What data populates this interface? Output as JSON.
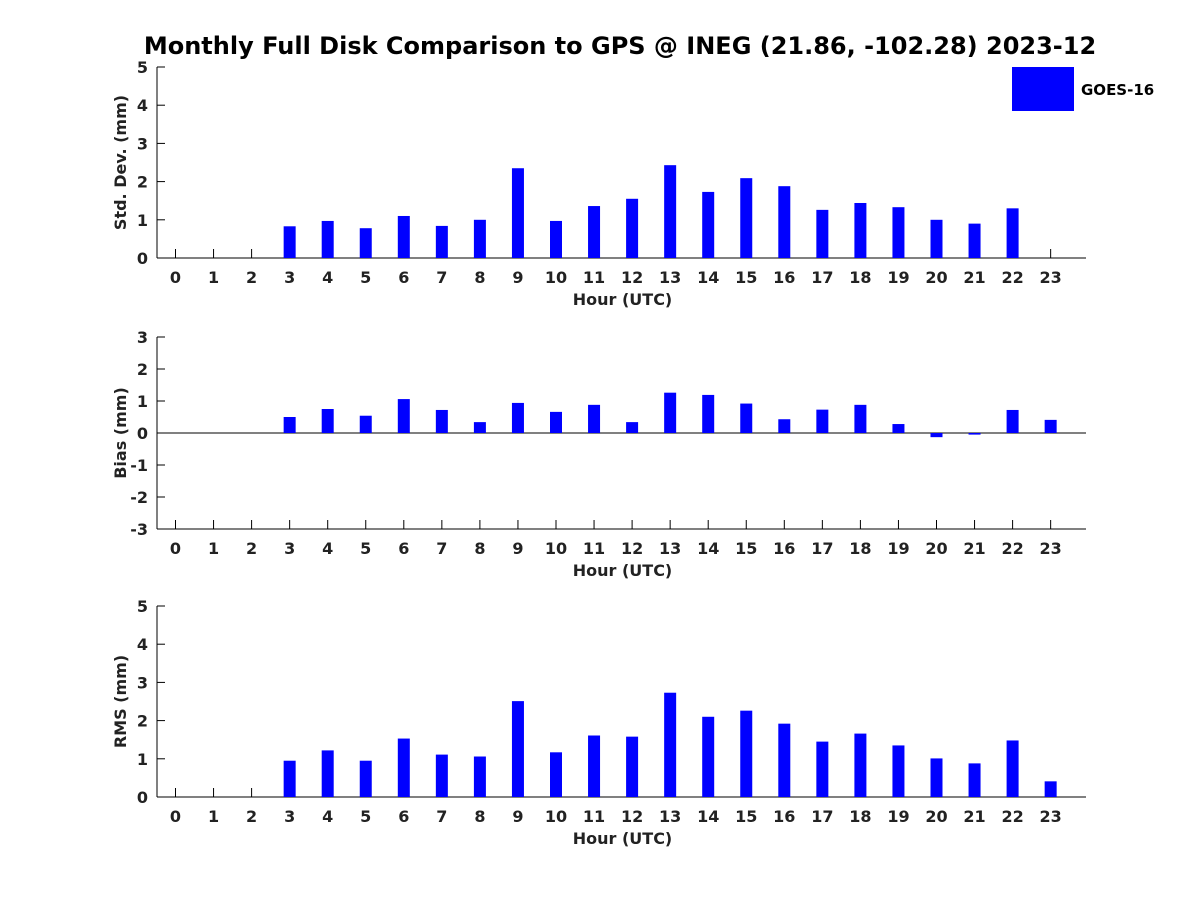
{
  "title": "Monthly Full Disk Comparison to GPS @ INEG (21.86, -102.28) 2023-12",
  "legend": {
    "label": "GOES-16",
    "color": "#0000ff"
  },
  "chart_data": [
    {
      "type": "bar",
      "name": "std-dev",
      "ylabel": "Std. Dev. (mm)",
      "xlabel": "Hour (UTC)",
      "ylim": [
        0,
        5
      ],
      "yticks": [
        0,
        1,
        2,
        3,
        4,
        5
      ],
      "categories": [
        "0",
        "1",
        "2",
        "3",
        "4",
        "5",
        "6",
        "7",
        "8",
        "9",
        "10",
        "11",
        "12",
        "13",
        "14",
        "15",
        "16",
        "17",
        "18",
        "19",
        "20",
        "21",
        "22",
        "23"
      ],
      "series": [
        {
          "name": "GOES-16",
          "values": [
            null,
            null,
            null,
            0.83,
            0.97,
            0.78,
            1.1,
            0.84,
            1.0,
            2.35,
            0.97,
            1.36,
            1.55,
            2.43,
            1.73,
            2.09,
            1.88,
            1.26,
            1.44,
            1.33,
            1.0,
            0.9,
            1.3,
            null
          ]
        }
      ]
    },
    {
      "type": "bar",
      "name": "bias",
      "ylabel": "Bias (mm)",
      "xlabel": "Hour (UTC)",
      "ylim": [
        -3,
        3
      ],
      "yticks": [
        -3,
        -2,
        -1,
        0,
        1,
        2,
        3
      ],
      "zero_line": true,
      "categories": [
        "0",
        "1",
        "2",
        "3",
        "4",
        "5",
        "6",
        "7",
        "8",
        "9",
        "10",
        "11",
        "12",
        "13",
        "14",
        "15",
        "16",
        "17",
        "18",
        "19",
        "20",
        "21",
        "22",
        "23"
      ],
      "series": [
        {
          "name": "GOES-16",
          "values": [
            null,
            null,
            null,
            0.5,
            0.75,
            0.54,
            1.06,
            0.72,
            0.34,
            0.94,
            0.66,
            0.88,
            0.34,
            1.26,
            1.19,
            0.92,
            0.43,
            0.73,
            0.88,
            0.28,
            -0.13,
            -0.05,
            0.72,
            0.41
          ]
        }
      ]
    },
    {
      "type": "bar",
      "name": "rms",
      "ylabel": "RMS (mm)",
      "xlabel": "Hour (UTC)",
      "ylim": [
        0,
        5
      ],
      "yticks": [
        0,
        1,
        2,
        3,
        4,
        5
      ],
      "categories": [
        "0",
        "1",
        "2",
        "3",
        "4",
        "5",
        "6",
        "7",
        "8",
        "9",
        "10",
        "11",
        "12",
        "13",
        "14",
        "15",
        "16",
        "17",
        "18",
        "19",
        "20",
        "21",
        "22",
        "23"
      ],
      "series": [
        {
          "name": "GOES-16",
          "values": [
            null,
            null,
            null,
            0.95,
            1.22,
            0.95,
            1.53,
            1.11,
            1.06,
            2.51,
            1.17,
            1.61,
            1.58,
            2.73,
            2.1,
            2.26,
            1.92,
            1.45,
            1.66,
            1.35,
            1.01,
            0.88,
            1.48,
            0.41
          ]
        }
      ]
    }
  ]
}
